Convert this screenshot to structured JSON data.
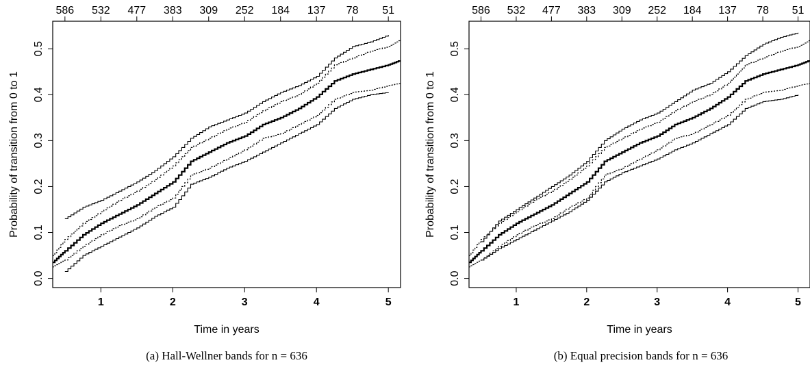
{
  "chart_data": [
    {
      "type": "line",
      "xlabel": "Time in years",
      "ylabel": "Probability of transition from 0 to 1",
      "xlim": [
        0.33,
        5.17
      ],
      "ylim": [
        -0.02,
        0.56
      ],
      "x_ticks": [
        1,
        2,
        3,
        4,
        5
      ],
      "y_ticks": [
        0.0,
        0.1,
        0.2,
        0.3,
        0.4,
        0.5
      ],
      "top_axis": {
        "positions": [
          0.5,
          1.0,
          1.5,
          2.0,
          2.5,
          3.0,
          3.5,
          4.0,
          4.5,
          5.0
        ],
        "labels": [
          "586",
          "532",
          "477",
          "383",
          "309",
          "252",
          "184",
          "137",
          "78",
          "51"
        ]
      },
      "caption": "(a) Hall-Wellner bands for n = 636",
      "series": [
        {
          "style": "estimate",
          "x": [
            0.33,
            0.5,
            0.75,
            1.0,
            1.25,
            1.5,
            1.75,
            2.0,
            2.25,
            2.5,
            2.75,
            3.0,
            3.25,
            3.5,
            3.75,
            4.0,
            4.25,
            4.5,
            4.75,
            5.0,
            5.17
          ],
          "values": [
            0.035,
            0.06,
            0.095,
            0.12,
            0.14,
            0.16,
            0.185,
            0.21,
            0.255,
            0.275,
            0.295,
            0.31,
            0.335,
            0.35,
            0.37,
            0.395,
            0.43,
            0.445,
            0.455,
            0.465,
            0.475
          ]
        },
        {
          "style": "band",
          "x": [
            0.5,
            0.75,
            1.0,
            1.25,
            1.5,
            1.75,
            2.0,
            2.25,
            2.5,
            2.75,
            3.0,
            3.25,
            3.5,
            3.75,
            4.0,
            4.25,
            4.5,
            4.75,
            5.0
          ],
          "values": [
            0.13,
            0.155,
            0.17,
            0.19,
            0.21,
            0.235,
            0.265,
            0.305,
            0.33,
            0.345,
            0.36,
            0.385,
            0.405,
            0.42,
            0.44,
            0.48,
            0.505,
            0.515,
            0.53
          ]
        },
        {
          "style": "band",
          "x": [
            0.5,
            0.75,
            1.0,
            1.25,
            1.5,
            1.75,
            2.0,
            2.25,
            2.5,
            2.75,
            3.0,
            3.25,
            3.5,
            3.75,
            4.0,
            4.25,
            4.5,
            4.75,
            5.0
          ],
          "values": [
            0.015,
            0.05,
            0.07,
            0.09,
            0.11,
            0.135,
            0.155,
            0.205,
            0.22,
            0.24,
            0.255,
            0.275,
            0.295,
            0.315,
            0.335,
            0.37,
            0.39,
            0.4,
            0.405
          ]
        },
        {
          "style": "pointwise",
          "x": [
            0.33,
            0.5,
            0.75,
            1.0,
            1.25,
            1.5,
            1.75,
            2.0,
            2.25,
            2.5,
            2.75,
            3.0,
            3.25,
            3.5,
            3.75,
            4.0,
            4.25,
            4.5,
            4.75,
            5.0,
            5.17
          ],
          "values": [
            0.05,
            0.085,
            0.12,
            0.145,
            0.17,
            0.19,
            0.215,
            0.245,
            0.285,
            0.305,
            0.325,
            0.34,
            0.365,
            0.385,
            0.4,
            0.425,
            0.465,
            0.48,
            0.495,
            0.505,
            0.52
          ]
        },
        {
          "style": "pointwise",
          "x": [
            0.33,
            0.5,
            0.75,
            1.0,
            1.25,
            1.5,
            1.75,
            2.0,
            2.25,
            2.5,
            2.75,
            3.0,
            3.25,
            3.5,
            3.75,
            4.0,
            4.25,
            4.5,
            4.75,
            5.0,
            5.17
          ],
          "values": [
            0.025,
            0.04,
            0.07,
            0.095,
            0.115,
            0.13,
            0.155,
            0.175,
            0.225,
            0.24,
            0.26,
            0.28,
            0.305,
            0.315,
            0.335,
            0.355,
            0.39,
            0.405,
            0.41,
            0.42,
            0.425
          ]
        }
      ]
    },
    {
      "type": "line",
      "xlabel": "Time in years",
      "ylabel": "Probability of transition from 0 to 1",
      "xlim": [
        0.33,
        5.17
      ],
      "ylim": [
        -0.02,
        0.56
      ],
      "x_ticks": [
        1,
        2,
        3,
        4,
        5
      ],
      "y_ticks": [
        0.0,
        0.1,
        0.2,
        0.3,
        0.4,
        0.5
      ],
      "top_axis": {
        "positions": [
          0.5,
          1.0,
          1.5,
          2.0,
          2.5,
          3.0,
          3.5,
          4.0,
          4.5,
          5.0
        ],
        "labels": [
          "586",
          "532",
          "477",
          "383",
          "309",
          "252",
          "184",
          "137",
          "78",
          "51"
        ]
      },
      "caption": "(b) Equal precision bands for n = 636",
      "series": [
        {
          "style": "estimate",
          "x": [
            0.33,
            0.5,
            0.75,
            1.0,
            1.25,
            1.5,
            1.75,
            2.0,
            2.25,
            2.5,
            2.75,
            3.0,
            3.25,
            3.5,
            3.75,
            4.0,
            4.25,
            4.5,
            4.75,
            5.0,
            5.17
          ],
          "values": [
            0.035,
            0.06,
            0.095,
            0.12,
            0.14,
            0.16,
            0.185,
            0.21,
            0.255,
            0.275,
            0.295,
            0.31,
            0.335,
            0.35,
            0.37,
            0.395,
            0.43,
            0.445,
            0.455,
            0.465,
            0.475
          ]
        },
        {
          "style": "band",
          "x": [
            0.5,
            0.75,
            1.0,
            1.25,
            1.5,
            1.75,
            2.0,
            2.25,
            2.5,
            2.75,
            3.0,
            3.25,
            3.5,
            3.75,
            4.0,
            4.25,
            4.5,
            4.75,
            5.0
          ],
          "values": [
            0.08,
            0.125,
            0.15,
            0.175,
            0.2,
            0.225,
            0.255,
            0.3,
            0.325,
            0.345,
            0.36,
            0.385,
            0.41,
            0.425,
            0.45,
            0.485,
            0.51,
            0.525,
            0.535
          ]
        },
        {
          "style": "band",
          "x": [
            0.5,
            0.75,
            1.0,
            1.25,
            1.5,
            1.75,
            2.0,
            2.25,
            2.5,
            2.75,
            3.0,
            3.25,
            3.5,
            3.75,
            4.0,
            4.25,
            4.5,
            4.75,
            5.0
          ],
          "values": [
            0.04,
            0.065,
            0.085,
            0.105,
            0.125,
            0.145,
            0.17,
            0.21,
            0.23,
            0.245,
            0.26,
            0.28,
            0.295,
            0.315,
            0.335,
            0.37,
            0.385,
            0.39,
            0.4
          ]
        },
        {
          "style": "pointwise",
          "x": [
            0.33,
            0.5,
            0.75,
            1.0,
            1.25,
            1.5,
            1.75,
            2.0,
            2.25,
            2.5,
            2.75,
            3.0,
            3.25,
            3.5,
            3.75,
            4.0,
            4.25,
            4.5,
            4.75,
            5.0,
            5.17
          ],
          "values": [
            0.05,
            0.085,
            0.12,
            0.145,
            0.17,
            0.19,
            0.215,
            0.245,
            0.285,
            0.305,
            0.325,
            0.34,
            0.365,
            0.385,
            0.4,
            0.425,
            0.465,
            0.48,
            0.495,
            0.505,
            0.52
          ]
        },
        {
          "style": "pointwise",
          "x": [
            0.33,
            0.5,
            0.75,
            1.0,
            1.25,
            1.5,
            1.75,
            2.0,
            2.25,
            2.5,
            2.75,
            3.0,
            3.25,
            3.5,
            3.75,
            4.0,
            4.25,
            4.5,
            4.75,
            5.0,
            5.17
          ],
          "values": [
            0.025,
            0.04,
            0.07,
            0.095,
            0.115,
            0.13,
            0.155,
            0.175,
            0.225,
            0.24,
            0.26,
            0.28,
            0.305,
            0.315,
            0.335,
            0.355,
            0.39,
            0.405,
            0.41,
            0.42,
            0.425
          ]
        }
      ]
    }
  ]
}
